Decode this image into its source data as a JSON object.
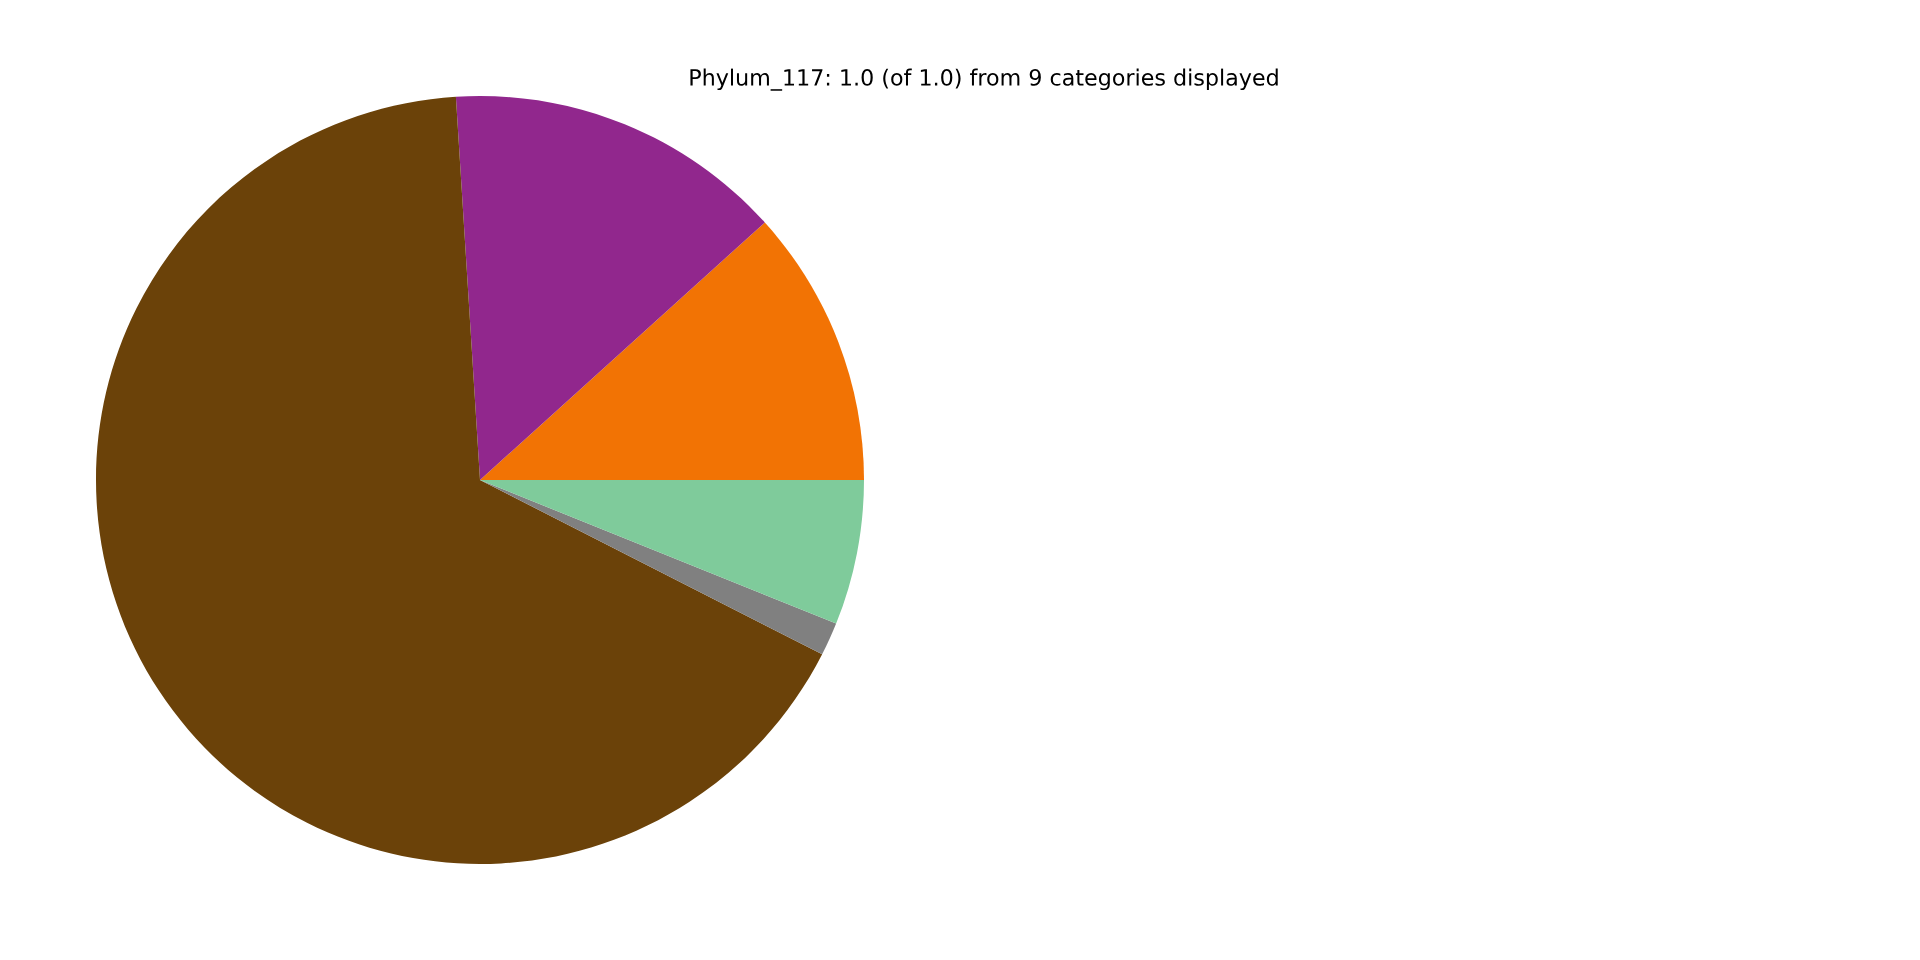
{
  "chart_data": {
    "type": "pie",
    "title": "Phylum_117: 1.0 (of 1.0) from 9 categories displayed",
    "categories": [
      null,
      null,
      null,
      null,
      null
    ],
    "values": [
      11.7,
      14.3,
      66.5,
      1.4,
      6.1
    ],
    "colors": [
      "#f27304",
      "#91278d",
      "#6b4209",
      "#808080",
      "#7fcb9b"
    ]
  }
}
